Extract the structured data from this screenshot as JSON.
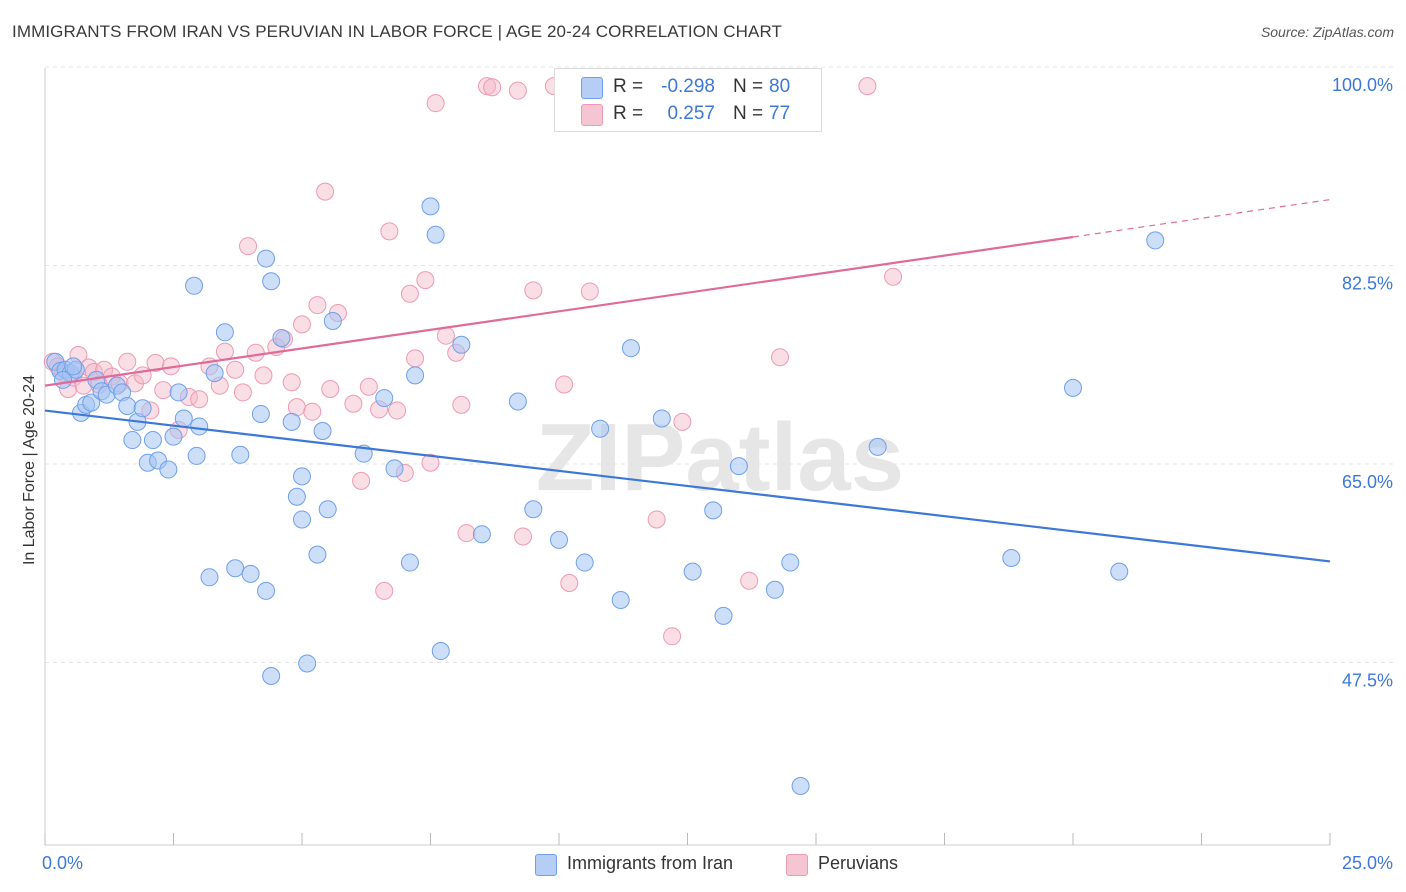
{
  "title": "IMMIGRANTS FROM IRAN VS PERUVIAN IN LABOR FORCE | AGE 20-24 CORRELATION CHART",
  "source": "Source: ZipAtlas.com",
  "watermark": "ZIPatlas",
  "legend": {
    "rows": [
      {
        "r_label": "R =",
        "r_value": "-0.298",
        "n_label": "N =",
        "n_value": "80",
        "color": "#a4c2f4"
      },
      {
        "r_label": "R =",
        "r_value": "0.257",
        "n_label": "N =",
        "n_value": "77",
        "color": "#f4b6c8"
      }
    ]
  },
  "bottom_legend": [
    {
      "label": "Immigrants from Iran",
      "color": "#a4c2f4"
    },
    {
      "label": "Peruvians",
      "color": "#f4b6c8"
    }
  ],
  "chart_data": {
    "type": "scatter",
    "title": "IMMIGRANTS FROM IRAN VS PERUVIAN IN LABOR FORCE | AGE 20-24 CORRELATION CHART",
    "xlabel": "",
    "ylabel": "In Labor Force | Age 20-24",
    "xlim": [
      0,
      25
    ],
    "ylim": [
      33,
      101.5
    ],
    "x_tick_labels": [
      {
        "value": 0,
        "label": "0.0%"
      },
      {
        "value": 25,
        "label": "25.0%"
      }
    ],
    "y_tick_labels": [
      {
        "value": 100,
        "label": "100.0%"
      },
      {
        "value": 82.5,
        "label": "82.5%"
      },
      {
        "value": 65,
        "label": "65.0%"
      },
      {
        "value": 47.5,
        "label": "47.5%"
      }
    ],
    "grid": true,
    "legend_placement": "top-center",
    "colors": {
      "iran": "#6fa0e8",
      "iran_fill": "rgba(164,194,244,0.55)",
      "iran_line": "#3c78d8",
      "peru": "#ee9ab3",
      "peru_fill": "rgba(244,182,200,0.45)",
      "peru_line": "#e06b98"
    },
    "series": [
      {
        "name": "Immigrants from Iran",
        "trend": {
          "x": [
            0,
            25
          ],
          "y": [
            71.3,
            58.0
          ]
        },
        "points": [
          [
            0.2,
            75.6
          ],
          [
            0.3,
            74.8
          ],
          [
            0.4,
            74.9
          ],
          [
            0.5,
            74.6
          ],
          [
            0.6,
            74.9
          ],
          [
            0.7,
            71.1
          ],
          [
            0.8,
            71.8
          ],
          [
            0.9,
            72.0
          ],
          [
            1.0,
            74.0
          ],
          [
            1.1,
            73.0
          ],
          [
            1.2,
            72.7
          ],
          [
            1.4,
            73.5
          ],
          [
            1.5,
            72.9
          ],
          [
            1.6,
            71.7
          ],
          [
            1.7,
            68.7
          ],
          [
            1.8,
            70.3
          ],
          [
            1.9,
            71.5
          ],
          [
            2.0,
            66.7
          ],
          [
            2.1,
            68.7
          ],
          [
            2.2,
            66.9
          ],
          [
            2.4,
            66.1
          ],
          [
            2.5,
            69.0
          ],
          [
            2.6,
            72.9
          ],
          [
            2.7,
            70.6
          ],
          [
            2.9,
            82.3
          ],
          [
            2.95,
            67.3
          ],
          [
            3.0,
            69.9
          ],
          [
            3.2,
            56.6
          ],
          [
            3.3,
            74.6
          ],
          [
            3.5,
            78.2
          ],
          [
            3.7,
            57.4
          ],
          [
            3.8,
            67.4
          ],
          [
            4.0,
            56.9
          ],
          [
            4.2,
            71.0
          ],
          [
            4.3,
            84.7
          ],
          [
            4.3,
            55.4
          ],
          [
            4.4,
            82.7
          ],
          [
            4.4,
            47.9
          ],
          [
            4.6,
            77.7
          ],
          [
            4.8,
            70.3
          ],
          [
            4.9,
            63.7
          ],
          [
            5.0,
            65.5
          ],
          [
            5.0,
            61.7
          ],
          [
            5.1,
            49.0
          ],
          [
            5.3,
            58.6
          ],
          [
            5.4,
            69.5
          ],
          [
            5.5,
            62.6
          ],
          [
            5.6,
            79.2
          ],
          [
            6.2,
            67.5
          ],
          [
            6.6,
            72.4
          ],
          [
            6.8,
            66.2
          ],
          [
            7.1,
            57.9
          ],
          [
            7.2,
            74.4
          ],
          [
            7.5,
            89.3
          ],
          [
            7.6,
            86.8
          ],
          [
            7.7,
            50.1
          ],
          [
            8.1,
            77.1
          ],
          [
            8.5,
            60.4
          ],
          [
            9.2,
            72.1
          ],
          [
            9.5,
            62.6
          ],
          [
            10.0,
            59.9
          ],
          [
            10.5,
            57.9
          ],
          [
            10.8,
            69.7
          ],
          [
            11.2,
            54.6
          ],
          [
            11.4,
            76.8
          ],
          [
            12.0,
            70.6
          ],
          [
            12.6,
            57.1
          ],
          [
            13.0,
            62.5
          ],
          [
            13.2,
            53.2
          ],
          [
            13.5,
            66.4
          ],
          [
            14.2,
            55.5
          ],
          [
            14.5,
            57.9
          ],
          [
            14.7,
            38.2
          ],
          [
            16.2,
            68.1
          ],
          [
            18.8,
            58.3
          ],
          [
            20.0,
            73.3
          ],
          [
            20.9,
            57.1
          ],
          [
            21.6,
            86.3
          ],
          [
            0.35,
            74.0
          ],
          [
            0.55,
            75.2
          ]
        ]
      },
      {
        "name": "Peruvians",
        "trend": {
          "x": [
            0,
            20
          ],
          "y": [
            73.5,
            86.6
          ]
        },
        "trend_dashed": {
          "x": [
            20,
            25
          ],
          "y": [
            86.6,
            89.9
          ]
        },
        "points": [
          [
            0.15,
            75.6
          ],
          [
            0.25,
            75.2
          ],
          [
            0.35,
            74.6
          ],
          [
            0.45,
            73.2
          ],
          [
            0.55,
            74.2
          ],
          [
            0.65,
            76.2
          ],
          [
            0.75,
            73.5
          ],
          [
            0.85,
            75.1
          ],
          [
            0.95,
            74.7
          ],
          [
            1.05,
            73.6
          ],
          [
            1.15,
            74.9
          ],
          [
            1.3,
            74.3
          ],
          [
            1.45,
            73.7
          ],
          [
            1.6,
            75.6
          ],
          [
            1.75,
            73.7
          ],
          [
            1.9,
            74.4
          ],
          [
            2.05,
            71.3
          ],
          [
            2.15,
            75.5
          ],
          [
            2.3,
            73.1
          ],
          [
            2.45,
            75.2
          ],
          [
            2.6,
            69.6
          ],
          [
            2.8,
            72.5
          ],
          [
            3.0,
            72.3
          ],
          [
            3.2,
            75.2
          ],
          [
            3.4,
            73.5
          ],
          [
            3.5,
            76.5
          ],
          [
            3.7,
            74.9
          ],
          [
            3.85,
            72.9
          ],
          [
            3.95,
            85.8
          ],
          [
            4.1,
            76.4
          ],
          [
            4.25,
            74.4
          ],
          [
            4.5,
            76.9
          ],
          [
            4.65,
            77.6
          ],
          [
            4.8,
            73.8
          ],
          [
            4.9,
            71.6
          ],
          [
            5.0,
            78.9
          ],
          [
            5.2,
            71.2
          ],
          [
            5.3,
            80.6
          ],
          [
            5.45,
            90.6
          ],
          [
            5.55,
            73.2
          ],
          [
            5.7,
            79.9
          ],
          [
            6.0,
            71.9
          ],
          [
            6.15,
            65.1
          ],
          [
            6.3,
            73.4
          ],
          [
            6.5,
            71.4
          ],
          [
            6.6,
            55.4
          ],
          [
            6.7,
            87.1
          ],
          [
            6.85,
            71.3
          ],
          [
            7.0,
            65.8
          ],
          [
            7.1,
            81.6
          ],
          [
            7.2,
            75.9
          ],
          [
            7.4,
            82.8
          ],
          [
            7.5,
            66.7
          ],
          [
            7.6,
            98.4
          ],
          [
            7.8,
            77.9
          ],
          [
            8.0,
            76.4
          ],
          [
            8.1,
            71.8
          ],
          [
            8.2,
            60.5
          ],
          [
            8.6,
            99.9
          ],
          [
            8.7,
            99.8
          ],
          [
            9.2,
            99.5
          ],
          [
            9.3,
            60.2
          ],
          [
            9.5,
            81.9
          ],
          [
            9.9,
            99.9
          ],
          [
            10.1,
            73.6
          ],
          [
            10.2,
            56.1
          ],
          [
            10.6,
            81.8
          ],
          [
            11.9,
            61.7
          ],
          [
            12.2,
            51.4
          ],
          [
            12.4,
            70.3
          ],
          [
            13.1,
            99.9
          ],
          [
            13.7,
            56.3
          ],
          [
            14.0,
            99.9
          ],
          [
            14.3,
            76.0
          ],
          [
            16.0,
            99.9
          ],
          [
            16.5,
            83.1
          ],
          [
            13.6,
            99.6
          ]
        ]
      }
    ]
  }
}
